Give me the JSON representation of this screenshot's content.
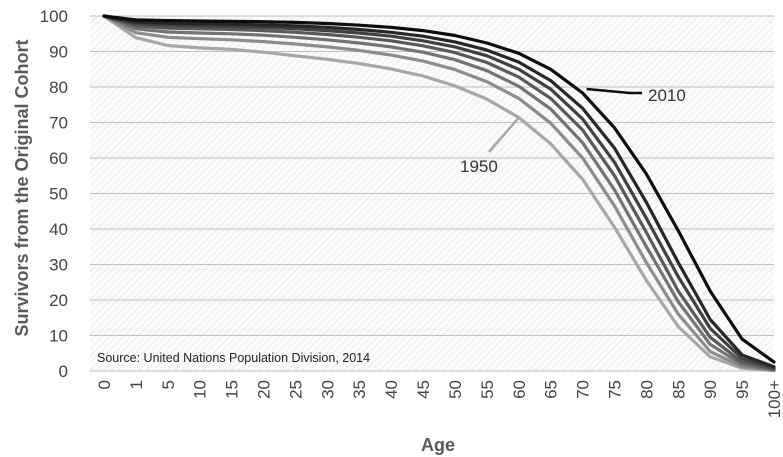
{
  "chart_data": {
    "type": "line",
    "title": "",
    "xlabel": "Age",
    "ylabel": "Survivors from the Original Cohort",
    "ylim": [
      0,
      100
    ],
    "yticks": [
      0,
      10,
      20,
      30,
      40,
      50,
      60,
      70,
      80,
      90,
      100
    ],
    "categories": [
      "0",
      "1",
      "5",
      "10",
      "15",
      "20",
      "25",
      "30",
      "35",
      "40",
      "45",
      "50",
      "55",
      "60",
      "65",
      "70",
      "75",
      "80",
      "85",
      "90",
      "95",
      "100+"
    ],
    "grid": true,
    "source": "Source: United Nations Population Division, 2014",
    "annotations": [
      {
        "text": "1950",
        "series_index": 0
      },
      {
        "text": "2010",
        "series_index": 6
      }
    ],
    "series": [
      {
        "color": "#a6a6a6",
        "values": [
          100,
          93.9,
          91.7,
          91.0,
          90.6,
          89.8,
          88.8,
          87.8,
          86.6,
          85.1,
          83.1,
          80.3,
          76.6,
          71.4,
          64.0,
          54.0,
          40.5,
          25.5,
          12.5,
          4.0,
          0.8,
          0.1
        ]
      },
      {
        "color": "#8c8c8c",
        "values": [
          100,
          95.3,
          94.0,
          93.6,
          93.3,
          92.8,
          92.1,
          91.3,
          90.3,
          89.0,
          87.3,
          84.9,
          81.5,
          76.8,
          69.8,
          60.0,
          46.5,
          30.5,
          16.0,
          5.5,
          1.2,
          0.2
        ]
      },
      {
        "color": "#737373",
        "values": [
          100,
          96.4,
          95.5,
          95.2,
          95.0,
          94.6,
          94.0,
          93.3,
          92.4,
          91.3,
          89.8,
          87.7,
          84.6,
          80.2,
          73.8,
          64.3,
          51.0,
          35.0,
          19.5,
          7.5,
          1.8,
          0.3
        ]
      },
      {
        "color": "#595959",
        "values": [
          100,
          97.2,
          96.6,
          96.4,
          96.2,
          95.9,
          95.4,
          94.8,
          94.0,
          93.0,
          91.6,
          89.7,
          86.9,
          82.8,
          76.8,
          67.9,
          55.0,
          39.0,
          22.5,
          9.5,
          2.5,
          0.5
        ]
      },
      {
        "color": "#404040",
        "values": [
          100,
          97.8,
          97.4,
          97.2,
          97.0,
          96.8,
          96.4,
          95.9,
          95.2,
          94.3,
          93.0,
          91.3,
          88.8,
          85.0,
          79.4,
          71.0,
          58.8,
          43.0,
          26.5,
          12.0,
          3.5,
          0.8
        ]
      },
      {
        "color": "#262626",
        "values": [
          100,
          98.3,
          98.0,
          97.9,
          97.7,
          97.5,
          97.2,
          96.8,
          96.2,
          95.4,
          94.3,
          92.7,
          90.4,
          87.0,
          81.8,
          74.0,
          62.8,
          47.5,
          30.5,
          14.5,
          4.5,
          1.2
        ]
      },
      {
        "color": "#0d0d0d",
        "values": [
          100,
          98.9,
          98.7,
          98.6,
          98.5,
          98.4,
          98.2,
          97.9,
          97.4,
          96.8,
          95.9,
          94.5,
          92.4,
          89.5,
          85.0,
          78.3,
          68.5,
          55.5,
          39.5,
          22.5,
          9.0,
          2.5
        ]
      }
    ]
  }
}
